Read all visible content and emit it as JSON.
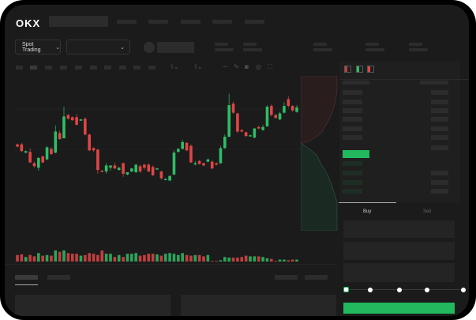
{
  "header": {
    "logo": "OKX"
  },
  "toolbar": {
    "market_select": "Spot Trading",
    "pair_select": ""
  },
  "order_form": {
    "tabs": [
      {
        "label": "Buy",
        "active": true
      },
      {
        "label": "Sell",
        "active": false
      }
    ],
    "slider_value_percent": 0
  },
  "colors": {
    "up": "#2ebd66",
    "down": "#e04545",
    "background": "#1b1b1b",
    "accent": "#22b85e"
  },
  "icons": [
    "chevron-down-icon",
    "order-book-both-icon",
    "order-book-buy-icon",
    "order-book-sell-icon",
    "line-tool-icon",
    "pencil-icon",
    "camera-icon",
    "settings-icon",
    "fullscreen-icon"
  ],
  "chart_data": {
    "type": "candlestick",
    "ylim": [
      10,
      140
    ],
    "grid": true,
    "candles": [
      [
        68,
        65,
        69,
        64
      ],
      [
        68,
        59,
        70,
        58
      ],
      [
        57,
        59,
        60,
        56
      ],
      [
        58,
        44,
        63,
        43
      ],
      [
        43,
        39,
        45,
        37
      ],
      [
        37,
        50,
        51,
        33
      ],
      [
        52,
        44,
        53,
        43
      ],
      [
        48,
        64,
        66,
        47
      ],
      [
        62,
        55,
        64,
        54
      ],
      [
        57,
        85,
        93,
        56
      ],
      [
        83,
        75,
        86,
        74
      ],
      [
        76,
        105,
        118,
        76
      ],
      [
        107,
        102,
        108,
        101
      ],
      [
        104,
        100,
        105,
        99
      ],
      [
        104,
        94,
        108,
        93
      ],
      [
        100,
        101,
        102,
        99
      ],
      [
        102,
        81,
        104,
        80
      ],
      [
        81,
        60,
        82,
        59
      ],
      [
        63,
        60,
        64,
        58
      ],
      [
        61,
        34,
        62,
        29
      ],
      [
        33,
        32,
        34,
        31
      ],
      [
        32,
        40,
        43,
        29
      ],
      [
        37,
        40,
        39,
        33
      ],
      [
        40,
        36,
        44,
        35
      ],
      [
        34,
        37,
        38,
        33
      ],
      [
        43,
        29,
        44,
        25
      ],
      [
        28,
        31,
        30,
        27
      ],
      [
        32,
        36,
        37,
        31
      ],
      [
        31,
        41,
        42,
        30
      ],
      [
        39,
        32,
        41,
        30
      ],
      [
        41,
        37,
        42,
        34
      ],
      [
        41,
        32,
        43,
        31
      ],
      [
        38,
        27,
        40,
        26
      ],
      [
        36,
        36,
        37,
        35
      ],
      [
        32,
        23,
        33,
        21
      ],
      [
        22,
        22,
        23,
        21
      ],
      [
        20,
        26,
        27,
        19
      ],
      [
        28,
        57,
        60,
        27
      ],
      [
        58,
        62,
        63,
        57
      ],
      [
        62,
        71,
        74,
        61
      ],
      [
        70,
        60,
        71,
        59
      ],
      [
        66,
        44,
        68,
        43
      ],
      [
        43,
        43,
        46,
        40
      ],
      [
        46,
        42,
        47,
        41
      ],
      [
        43,
        40,
        44,
        39
      ],
      [
        45,
        48,
        49,
        44
      ],
      [
        45,
        36,
        47,
        35
      ],
      [
        43,
        41,
        44,
        40
      ],
      [
        43,
        63,
        66,
        42
      ],
      [
        63,
        78,
        81,
        62
      ],
      [
        78,
        120,
        135,
        78
      ],
      [
        122,
        110,
        125,
        108
      ],
      [
        109,
        85,
        110,
        83
      ],
      [
        87,
        85,
        88,
        84
      ],
      [
        84,
        79,
        85,
        78
      ],
      [
        80,
        80,
        81,
        79
      ],
      [
        77,
        89,
        90,
        76
      ],
      [
        91,
        89,
        93,
        88
      ],
      [
        87,
        91,
        94,
        86
      ],
      [
        92,
        118,
        120,
        91
      ],
      [
        119,
        107,
        121,
        105
      ],
      [
        107,
        103,
        108,
        102
      ],
      [
        101,
        109,
        111,
        100
      ],
      [
        110,
        119,
        124,
        109
      ],
      [
        128,
        119,
        132,
        117
      ],
      [
        119,
        113,
        120,
        111
      ],
      [
        111,
        117,
        120,
        110
      ]
    ],
    "volumes": [
      10,
      11,
      7,
      10,
      8,
      13,
      9,
      10,
      9,
      17,
      15,
      17,
      13,
      12,
      12,
      9,
      10,
      13,
      12,
      10,
      17,
      12,
      12,
      7,
      10,
      7,
      12,
      12,
      13,
      9,
      10,
      12,
      12,
      11,
      9,
      12,
      13,
      12,
      10,
      13,
      10,
      9,
      10,
      10,
      8,
      10,
      1,
      1,
      2,
      7,
      6,
      6,
      6,
      7,
      9,
      8,
      8,
      8,
      7,
      5,
      4,
      1,
      3,
      3,
      2,
      3,
      3
    ]
  }
}
